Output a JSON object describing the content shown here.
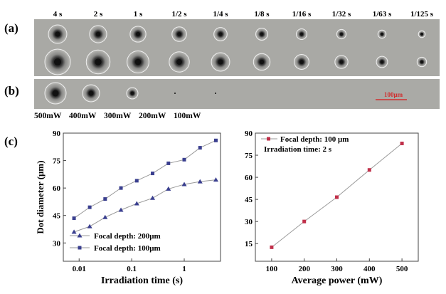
{
  "panel_labels": {
    "a": "(a)",
    "b": "(b)",
    "c": "(c)"
  },
  "time_labels": [
    "4 s",
    "2 s",
    "1 s",
    "1/2 s",
    "1/4 s",
    "1/8 s",
    "1/16 s",
    "1/32 s",
    "1/63 s",
    "1/125 s"
  ],
  "power_labels": [
    "500mW",
    "400mW",
    "300mW",
    "200mW",
    "100mW"
  ],
  "scale_bar": "100μm",
  "colors": {
    "photo_bg": "#a9a9a5",
    "series_200": "#3a3f8f",
    "series_100": "#3a3f8f",
    "series_power": "#c0304a",
    "line": "#9a9a9a"
  },
  "chart_data": [
    {
      "type": "line",
      "xlabel": "Irradiation time (s)",
      "ylabel": "Dot diameter (μm)",
      "xscale": "log",
      "xlim": [
        0.005,
        4.9
      ],
      "ylim": [
        20,
        90
      ],
      "xticks": [
        0.01,
        0.1,
        1
      ],
      "xtick_labels": [
        "0.01",
        "0.1",
        "1"
      ],
      "yticks": [
        30,
        45,
        60,
        75,
        90
      ],
      "legend_placement": "bottom-left",
      "x": [
        0.008,
        0.0159,
        0.03125,
        0.0625,
        0.125,
        0.25,
        0.5,
        1,
        2,
        4
      ],
      "series": [
        {
          "name": "Focal depth: 200μm",
          "marker": "triangle",
          "values": [
            36,
            39,
            44,
            48,
            51.5,
            54.5,
            59.5,
            62,
            63.5,
            64.5
          ]
        },
        {
          "name": "Focal depth: 100μm",
          "marker": "square",
          "values": [
            43.5,
            49.5,
            54,
            60,
            64,
            68,
            73.5,
            75.5,
            82,
            86
          ]
        }
      ]
    },
    {
      "type": "line",
      "xlabel": "Average power (mW)",
      "ylabel": "",
      "xlim": [
        50,
        550
      ],
      "ylim": [
        3,
        90
      ],
      "xticks": [
        100,
        200,
        300,
        400,
        500
      ],
      "yticks": [
        15,
        30,
        45,
        60,
        75,
        90
      ],
      "legend_placement": "top-left",
      "annotation": "Irradiation time: 2 s",
      "x": [
        100,
        200,
        300,
        400,
        500
      ],
      "series": [
        {
          "name": "Focal depth: 100 μm",
          "marker": "square",
          "values": [
            12.5,
            30,
            46.5,
            65,
            83
          ]
        }
      ]
    }
  ]
}
